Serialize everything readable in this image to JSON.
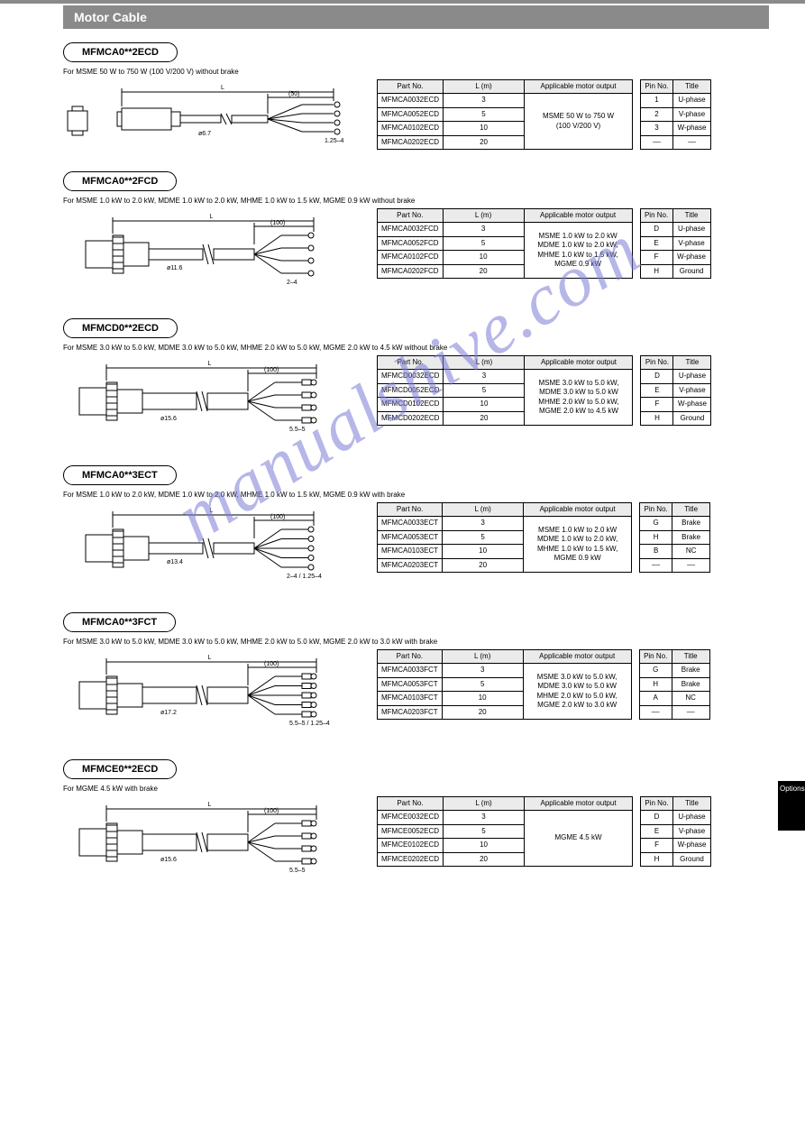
{
  "page": {
    "top_line_color": "#8a8a8a",
    "header_bar_bg": "#8a8a8a",
    "header_bar_text": "Motor Cable",
    "page_tab": "Options"
  },
  "watermark": "manualshive.com",
  "blocks": [
    {
      "pill": "MFMCA0**2ECD",
      "note": "For MSME 50 W to 750 W (100 V/200 V) without brake",
      "spec_headers": [
        "Part No.",
        "L (m)",
        "Applicable motor output"
      ],
      "spec_rows": [
        [
          "MFMCA0032ECD",
          "3",
          ""
        ],
        [
          "MFMCA0052ECD",
          "5",
          "MSME 50 W to 750 W"
        ],
        [
          "MFMCA0102ECD",
          "10",
          "(100 V/200 V)"
        ],
        [
          "MFMCA0202ECD",
          "20",
          ""
        ]
      ],
      "pin_headers": [
        "Pin No.",
        "Title"
      ],
      "pin_rows": [
        [
          "1",
          "U-phase"
        ],
        [
          "2",
          "V-phase"
        ],
        [
          "3",
          "W-phase"
        ],
        [
          "––",
          "––"
        ]
      ],
      "dims": {
        "L": "L",
        "mid": "(50)",
        "lead": "ø6.7",
        "term": "1.25–4"
      },
      "diagram": "type1"
    },
    {
      "pill": "MFMCA0**2FCD",
      "note": "For MSME 1.0 kW to 2.0 kW, MDME 1.0 kW to 2.0 kW, MHME 1.0 kW to 1.5 kW, MGME 0.9 kW without brake",
      "spec_headers": [
        "Part No.",
        "L (m)",
        "Applicable motor output"
      ],
      "spec_rows": [
        [
          "MFMCA0032FCD",
          "3",
          ""
        ],
        [
          "MFMCA0052FCD",
          "5",
          "MSME 1.0 kW to 2.0 kW"
        ],
        [
          "MFMCA0102FCD",
          "10",
          "MDME 1.0 kW to 2.0 kW, MHME 1.0 kW to 1.5 kW, MGME 0.9 kW"
        ],
        [
          "MFMCA0202FCD",
          "20",
          ""
        ]
      ],
      "pin_headers": [
        "Pin No.",
        "Title"
      ],
      "pin_rows": [
        [
          "D",
          "U-phase"
        ],
        [
          "E",
          "V-phase"
        ],
        [
          "F",
          "W-phase"
        ],
        [
          "H",
          "Ground"
        ]
      ],
      "dims": {
        "L": "L",
        "mid": "(100)",
        "lead": "ø11.6",
        "term": "2–4"
      },
      "diagram": "type2"
    },
    {
      "pill": "MFMCD0**2ECD",
      "note": "For MSME 3.0 kW to 5.0 kW, MDME 3.0 kW to 5.0 kW, MHME 2.0 kW to 5.0 kW, MGME 2.0 kW to 4.5 kW without brake",
      "spec_headers": [
        "Part No.",
        "L (m)",
        "Applicable motor output"
      ],
      "spec_rows": [
        [
          "MFMCD0032ECD",
          "3",
          ""
        ],
        [
          "MFMCD0052ECD",
          "5",
          "MSME 3.0 kW to 5.0 kW, MDME 3.0 kW to 5.0 kW"
        ],
        [
          "MFMCD0102ECD",
          "10",
          "MHME 2.0 kW to 5.0 kW, MGME 2.0 kW to 4.5 kW"
        ],
        [
          "MFMCD0202ECD",
          "20",
          ""
        ]
      ],
      "pin_headers": [
        "Pin No.",
        "Title"
      ],
      "pin_rows": [
        [
          "D",
          "U-phase"
        ],
        [
          "E",
          "V-phase"
        ],
        [
          "F",
          "W-phase"
        ],
        [
          "H",
          "Ground"
        ]
      ],
      "dims": {
        "L": "L",
        "mid": "(100)",
        "lead": "ø15.6",
        "term": "5.5–5"
      },
      "diagram": "type3"
    },
    {
      "pill": "MFMCA0**3ECT",
      "note": "For MSME 1.0 kW to 2.0 kW, MDME 1.0 kW to 2.0 kW, MHME 1.0 kW to 1.5 kW, MGME 0.9 kW with brake",
      "spec_headers": [
        "Part No.",
        "L (m)",
        "Applicable motor output"
      ],
      "spec_rows": [
        [
          "MFMCA0033ECT",
          "3",
          ""
        ],
        [
          "MFMCA0053ECT",
          "5",
          "MSME 1.0 kW to 2.0 kW"
        ],
        [
          "MFMCA0103ECT",
          "10",
          "MDME 1.0 kW to 2.0 kW, MHME 1.0 kW to 1.5 kW, MGME 0.9 kW"
        ],
        [
          "MFMCA0203ECT",
          "20",
          ""
        ]
      ],
      "pin_headers": [
        "Pin No.",
        "Title"
      ],
      "pin_rows": [
        [
          "G",
          "Brake"
        ],
        [
          "H",
          "Brake"
        ],
        [
          "B",
          "NC"
        ],
        [
          "––",
          "––"
        ]
      ],
      "dims": {
        "L": "L",
        "mid": "(100)",
        "lead": "ø13.4",
        "term": "2–4 / 1.25–4"
      },
      "diagram": "type2b"
    },
    {
      "pill": "MFMCA0**3FCT",
      "note": "For MSME 3.0 kW to 5.0 kW, MDME 3.0 kW to 5.0 kW, MHME 2.0 kW to 5.0 kW, MGME 2.0 kW to 3.0 kW with brake",
      "spec_headers": [
        "Part No.",
        "L (m)",
        "Applicable motor output"
      ],
      "spec_rows": [
        [
          "MFMCA0033FCT",
          "3",
          ""
        ],
        [
          "MFMCA0053FCT",
          "5",
          "MSME 3.0 kW to 5.0 kW, MDME 3.0 kW to 5.0 kW"
        ],
        [
          "MFMCA0103FCT",
          "10",
          "MHME 2.0 kW to 5.0 kW, MGME 2.0 kW to 3.0 kW"
        ],
        [
          "MFMCA0203FCT",
          "20",
          ""
        ]
      ],
      "pin_headers": [
        "Pin No.",
        "Title"
      ],
      "pin_rows": [
        [
          "G",
          "Brake"
        ],
        [
          "H",
          "Brake"
        ],
        [
          "A",
          "NC"
        ],
        [
          "––",
          "––"
        ]
      ],
      "dims": {
        "L": "L",
        "mid": "(100)",
        "lead": "ø17.2",
        "term": "5.5–5 / 1.25–4"
      },
      "diagram": "type3b"
    },
    {
      "pill": "MFMCE0**2ECD",
      "note": "For MGME 4.5 kW with brake",
      "spec_headers": [
        "Part No.",
        "L (m)",
        "Applicable motor output"
      ],
      "spec_rows": [
        [
          "MFMCE0032ECD",
          "3",
          ""
        ],
        [
          "MFMCE0052ECD",
          "5",
          "MGME 4.5 kW"
        ],
        [
          "MFMCE0102ECD",
          "10",
          ""
        ],
        [
          "MFMCE0202ECD",
          "20",
          ""
        ]
      ],
      "pin_headers": [
        "Pin No.",
        "Title"
      ],
      "pin_rows": [
        [
          "D",
          "U-phase"
        ],
        [
          "E",
          "V-phase"
        ],
        [
          "F",
          "W-phase"
        ],
        [
          "H",
          "Ground"
        ]
      ],
      "dims": {
        "L": "L",
        "mid": "(100)",
        "lead": "ø15.6",
        "term": "5.5–5"
      },
      "diagram": "type3"
    }
  ],
  "colors": {
    "table_header_bg": "#ebebeb",
    "border": "#000000",
    "watermark": "#7b7bd6"
  }
}
